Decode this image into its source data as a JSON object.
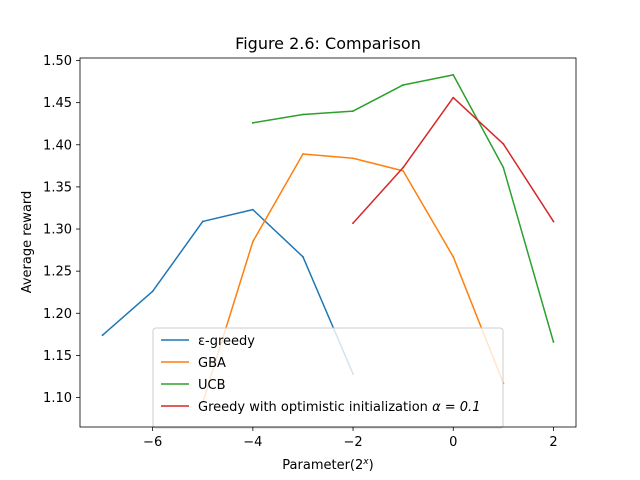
{
  "chart_data": {
    "type": "line",
    "title": "Figure 2.6: Comparison",
    "xlabel_text": "Parameter(2",
    "xlabel_sup": "x",
    "xlabel_close": ")",
    "ylabel": "Average reward",
    "xlim": [
      -7.45,
      2.45
    ],
    "ylim": [
      1.065,
      1.503
    ],
    "xticks": [
      -6,
      -4,
      -2,
      0,
      2
    ],
    "xtick_labels": [
      "−6",
      "−4",
      "−2",
      "0",
      "2"
    ],
    "yticks": [
      1.1,
      1.15,
      1.2,
      1.25,
      1.3,
      1.35,
      1.4,
      1.45,
      1.5
    ],
    "ytick_labels": [
      "1.10",
      "1.15",
      "1.20",
      "1.25",
      "1.30",
      "1.35",
      "1.40",
      "1.45",
      "1.50"
    ],
    "grid": false,
    "legend_position": "lower-center",
    "series": [
      {
        "name": "ε-greedy",
        "color": "#1f77b4",
        "x": [
          -7,
          -6,
          -5,
          -4,
          -3,
          -2
        ],
        "y": [
          1.174,
          1.226,
          1.309,
          1.323,
          1.267,
          1.128
        ]
      },
      {
        "name": "GBA",
        "color": "#ff7f0e",
        "x": [
          -5,
          -4,
          -3,
          -2,
          -1,
          0,
          1
        ],
        "y": [
          1.094,
          1.285,
          1.389,
          1.384,
          1.369,
          1.267,
          1.117
        ]
      },
      {
        "name": "UCB",
        "color": "#2ca02c",
        "x": [
          -4,
          -3,
          -2,
          -1,
          0,
          1,
          2
        ],
        "y": [
          1.426,
          1.436,
          1.44,
          1.471,
          1.483,
          1.373,
          1.166
        ]
      },
      {
        "name": "Greedy with optimistic initialization",
        "name_suffix": "α = 0.1",
        "color": "#d62728",
        "x": [
          -2,
          -1,
          0,
          1,
          2
        ],
        "y": [
          1.307,
          1.373,
          1.456,
          1.401,
          1.309
        ]
      }
    ]
  }
}
